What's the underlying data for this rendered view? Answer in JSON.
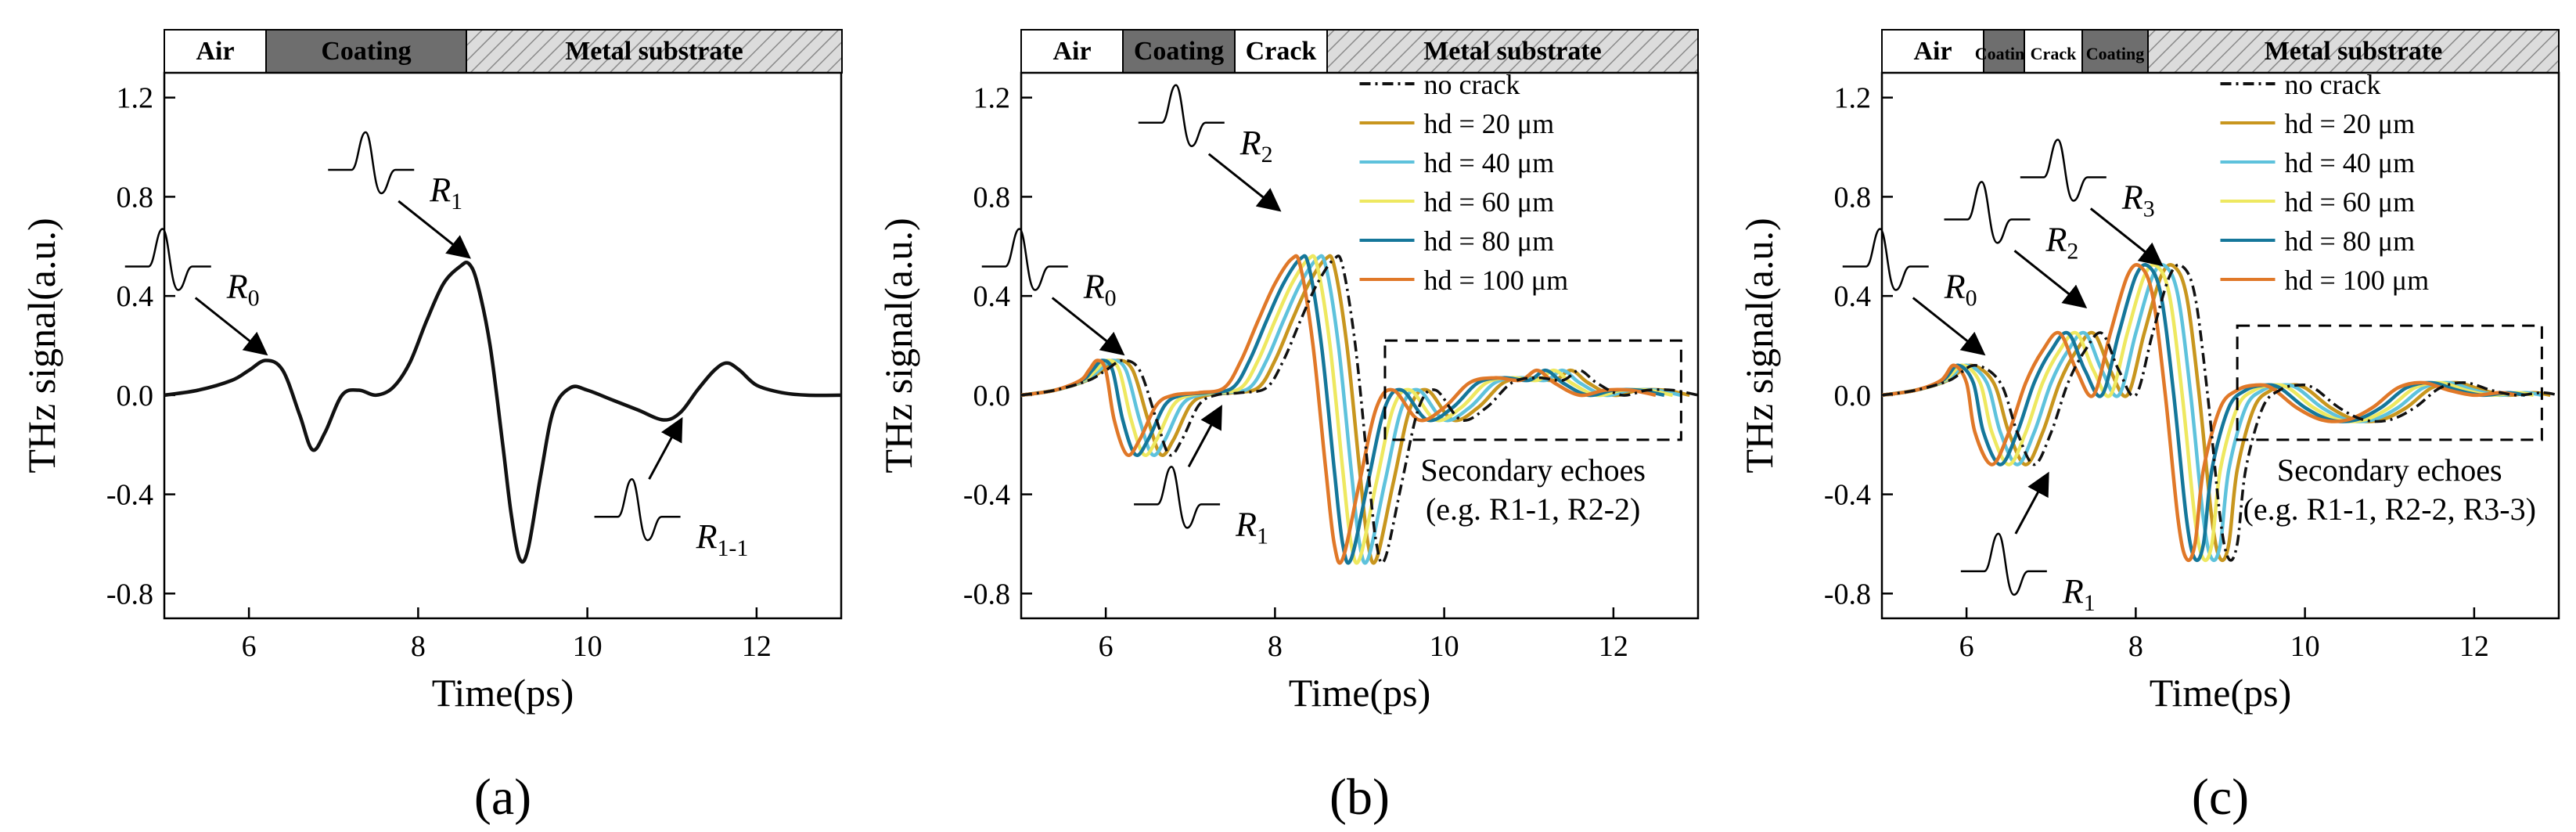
{
  "chart_data": [
    {
      "panel_label": "(a)",
      "type": "line",
      "xlabel": "Time(ps)",
      "ylabel": "THz signal(a.u.)",
      "xlim": [
        5,
        13
      ],
      "ylim": [
        -0.9,
        1.3
      ],
      "xticks": [
        "6",
        "8",
        "10",
        "12"
      ],
      "yticks": [
        "1.2",
        "0.8",
        "0.4",
        "0.0",
        "-0.4",
        "-0.8"
      ],
      "layers": [
        {
          "label": "Air",
          "color": "#ffffff"
        },
        {
          "label": "Coating",
          "color": "#6e6e6e"
        },
        {
          "label": "Metal substrate",
          "color": "#d9d9d9",
          "hatched": true
        }
      ],
      "series": [
        {
          "name": "",
          "color": "#111111",
          "x": [
            5.0,
            5.4,
            5.8,
            6.0,
            6.2,
            6.4,
            6.6,
            6.75,
            6.9,
            7.1,
            7.3,
            7.5,
            7.7,
            7.9,
            8.1,
            8.3,
            8.5,
            8.6,
            8.7,
            8.85,
            9.0,
            9.1,
            9.2,
            9.3,
            9.45,
            9.6,
            9.8,
            10.0,
            10.3,
            10.6,
            10.9,
            11.1,
            11.3,
            11.5,
            11.65,
            11.8,
            12.0,
            12.3,
            12.6,
            13.0
          ],
          "y": [
            0.0,
            0.02,
            0.06,
            0.1,
            0.14,
            0.1,
            -0.08,
            -0.22,
            -0.15,
            0.0,
            0.02,
            0.0,
            0.03,
            0.13,
            0.3,
            0.45,
            0.52,
            0.53,
            0.45,
            0.2,
            -0.2,
            -0.48,
            -0.66,
            -0.62,
            -0.32,
            -0.06,
            0.03,
            0.02,
            -0.02,
            -0.06,
            -0.1,
            -0.07,
            0.02,
            0.1,
            0.13,
            0.1,
            0.04,
            0.01,
            0.0,
            0.0
          ]
        }
      ],
      "annotations": [
        {
          "text": "R",
          "sub": "0",
          "x": 6.2,
          "y": 0.14
        },
        {
          "text": "R",
          "sub": "1",
          "x": 8.6,
          "y": 0.53
        },
        {
          "text": "R",
          "sub": "1-1",
          "x": 11.1,
          "y": -0.08
        }
      ]
    },
    {
      "panel_label": "(b)",
      "type": "line",
      "xlabel": "Time(ps)",
      "ylabel": "THz signal(a.u.)",
      "xlim": [
        5,
        13
      ],
      "ylim": [
        -0.9,
        1.3
      ],
      "xticks": [
        "6",
        "8",
        "10",
        "12"
      ],
      "yticks": [
        "1.2",
        "0.8",
        "0.4",
        "0.0",
        "-0.4",
        "-0.8"
      ],
      "layers": [
        {
          "label": "Air",
          "color": "#ffffff"
        },
        {
          "label": "Coating",
          "color": "#6e6e6e"
        },
        {
          "label": "Crack",
          "color": "#ffffff"
        },
        {
          "label": "Metal substrate",
          "color": "#d9d9d9",
          "hatched": true
        }
      ],
      "legend": [
        "no crack",
        "hd = 20 μm",
        "hd = 40 μm",
        "hd = 60 μm",
        "hd = 80 μm",
        "hd = 100 μm"
      ],
      "series": [
        {
          "name": "no crack",
          "color": "#111111",
          "dash": "14,6,3,6",
          "shift": 0.0
        },
        {
          "name": "hd = 20 μm",
          "color": "#c8961e",
          "shift": -0.1
        },
        {
          "name": "hd = 40 μm",
          "color": "#5ec2dc",
          "shift": -0.2
        },
        {
          "name": "hd = 60 μm",
          "color": "#eee860",
          "shift": -0.3
        },
        {
          "name": "hd = 80 μm",
          "color": "#15779a",
          "shift": -0.4
        },
        {
          "name": "hd = 100 μm",
          "color": "#e07828",
          "shift": -0.5
        }
      ],
      "base_curve": {
        "x": [
          5.0,
          5.4,
          5.8,
          6.0,
          6.2,
          6.4,
          6.6,
          6.75,
          6.9,
          7.1,
          7.3,
          7.6,
          7.9,
          8.1,
          8.3,
          8.5,
          8.7,
          8.8,
          8.95,
          9.1,
          9.2,
          9.3,
          9.5,
          9.7,
          9.9,
          10.2,
          10.5,
          10.8,
          11.1,
          11.4,
          11.6,
          11.8,
          12.1,
          12.4,
          12.7,
          13.0
        ],
        "y": [
          0.0,
          0.02,
          0.06,
          0.1,
          0.14,
          0.1,
          -0.1,
          -0.24,
          -0.18,
          -0.04,
          0.0,
          0.01,
          0.03,
          0.14,
          0.3,
          0.45,
          0.55,
          0.52,
          0.2,
          -0.3,
          -0.6,
          -0.66,
          -0.35,
          -0.05,
          0.02,
          -0.1,
          -0.05,
          0.05,
          0.07,
          0.06,
          0.1,
          0.05,
          0.0,
          0.02,
          0.02,
          0.0
        ]
      },
      "annotations": [
        {
          "text": "R",
          "sub": "0",
          "x": 6.2,
          "y": 0.14
        },
        {
          "text": "R",
          "sub": "1",
          "x": 7.35,
          "y": -0.03
        },
        {
          "text": "R",
          "sub": "2",
          "x": 8.05,
          "y": 0.72
        }
      ],
      "box_label": [
        "Secondary echoes",
        "(e.g. R1-1, R2-2)"
      ]
    },
    {
      "panel_label": "(c)",
      "type": "line",
      "xlabel": "Time(ps)",
      "ylabel": "THz signal(a.u.)",
      "xlim": [
        5,
        13
      ],
      "ylim": [
        -0.9,
        1.3
      ],
      "xticks": [
        "6",
        "8",
        "10",
        "12"
      ],
      "yticks": [
        "1.2",
        "0.8",
        "0.4",
        "0.0",
        "-0.4",
        "-0.8"
      ],
      "layers": [
        {
          "label": "Air",
          "color": "#ffffff"
        },
        {
          "label": "Coating",
          "color": "#6e6e6e"
        },
        {
          "label": "Crack",
          "color": "#ffffff"
        },
        {
          "label": "Coating",
          "color": "#6e6e6e"
        },
        {
          "label": "Metal substrate",
          "color": "#d9d9d9",
          "hatched": true
        }
      ],
      "legend": [
        "no crack",
        "hd = 20 μm",
        "hd = 40 μm",
        "hd = 60 μm",
        "hd = 80 μm",
        "hd = 100 μm"
      ],
      "series": [
        {
          "name": "no crack",
          "color": "#111111",
          "dash": "14,6,3,6",
          "shift": 0.0
        },
        {
          "name": "hd = 20 μm",
          "color": "#c8961e",
          "shift": -0.1
        },
        {
          "name": "hd = 40 μm",
          "color": "#5ec2dc",
          "shift": -0.2
        },
        {
          "name": "hd = 60 μm",
          "color": "#eee860",
          "shift": -0.3
        },
        {
          "name": "hd = 80 μm",
          "color": "#15779a",
          "shift": -0.4
        },
        {
          "name": "hd = 100 μm",
          "color": "#e07828",
          "shift": -0.5
        }
      ],
      "base_curve": {
        "x": [
          5.0,
          5.4,
          5.8,
          6.1,
          6.4,
          6.6,
          6.8,
          7.0,
          7.2,
          7.4,
          7.6,
          7.8,
          8.0,
          8.2,
          8.4,
          8.55,
          8.7,
          8.85,
          9.0,
          9.1,
          9.2,
          9.3,
          9.5,
          9.7,
          9.9,
          10.1,
          10.4,
          10.7,
          11.0,
          11.3,
          11.6,
          11.9,
          12.2,
          12.5,
          12.8,
          13.0
        ],
        "y": [
          0.0,
          0.02,
          0.06,
          0.12,
          0.05,
          -0.15,
          -0.28,
          -0.15,
          0.05,
          0.18,
          0.25,
          0.1,
          0.0,
          0.25,
          0.48,
          0.52,
          0.4,
          0.0,
          -0.5,
          -0.66,
          -0.6,
          -0.3,
          -0.05,
          0.02,
          0.04,
          0.03,
          -0.05,
          -0.1,
          -0.1,
          -0.05,
          0.03,
          0.05,
          0.02,
          0.0,
          0.01,
          0.0
        ]
      },
      "annotations": [
        {
          "text": "R",
          "sub": "0",
          "x": 6.2,
          "y": 0.14
        },
        {
          "text": "R",
          "sub": "1",
          "x": 6.95,
          "y": -0.3
        },
        {
          "text": "R",
          "sub": "2",
          "x": 7.4,
          "y": 0.33
        },
        {
          "text": "R",
          "sub": "3",
          "x": 8.3,
          "y": 0.5
        }
      ],
      "box_label": [
        "Secondary echoes",
        "(e.g. R1-1, R2-2, R3-3)"
      ]
    }
  ]
}
